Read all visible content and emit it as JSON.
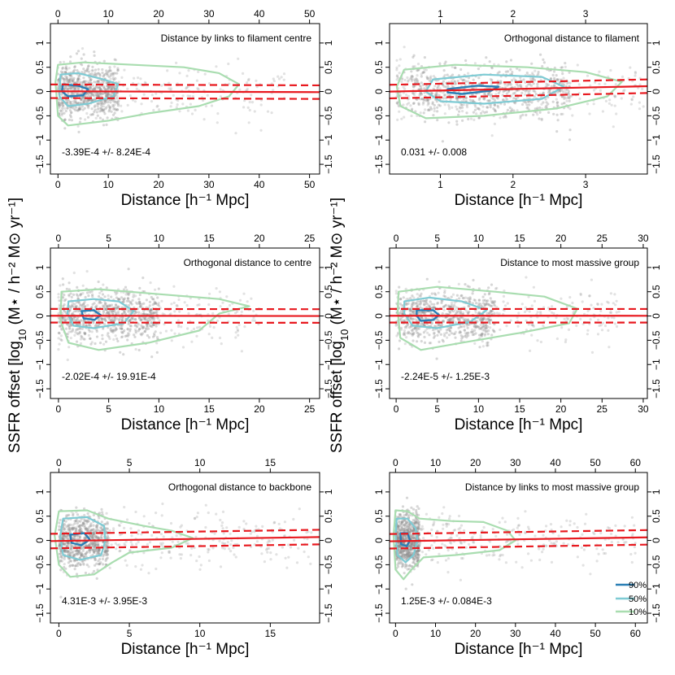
{
  "figure": {
    "y_axis_label_prefix": "SSFR offset [log",
    "y_axis_label_sub": "10",
    "y_axis_label_suffix": " (M⋆ / h⁻² M⊙ yr⁻¹]",
    "colors": {
      "contour_90": "#2a7fb5",
      "contour_50": "#7ecbd4",
      "contour_10": "#a9ddb0",
      "fit": "#e8191f",
      "points": "#8c8c8c"
    }
  },
  "legend": {
    "entries": [
      {
        "label": "90%",
        "color": "#2a7fb5"
      },
      {
        "label": "50%",
        "color": "#7ecbd4"
      },
      {
        "label": "10%",
        "color": "#a9ddb0"
      }
    ],
    "position": "bottom-right of last panel"
  },
  "chart_data": [
    {
      "type": "scatter",
      "title": "Distance by links to filament centre",
      "xlabel": "Distance [h⁻¹ Mpc]",
      "annotation": "-3.39E-4 +/- 8.24E-4",
      "xlim": [
        -1.5,
        52
      ],
      "ylim": [
        -1.7,
        1.4
      ],
      "xticks": [
        0,
        10,
        20,
        30,
        40,
        50
      ],
      "yticks": [
        -1.5,
        -1,
        -0.5,
        0,
        0.5,
        1
      ],
      "ytick_labels": [
        "−1.5",
        "−1",
        "−0.5",
        "0",
        "0.5",
        "1"
      ],
      "fit": {
        "intercept": 0.005,
        "slope": -0.000339,
        "band": 0.14
      },
      "scatter_extent": {
        "core_x": [
          0,
          12
        ],
        "tail_x": [
          0,
          45
        ]
      },
      "contours": [
        {
          "level": "10%",
          "points": [
            [
              0,
              0.55
            ],
            [
              5,
              0.6
            ],
            [
              15,
              0.55
            ],
            [
              25,
              0.5
            ],
            [
              32,
              0.38
            ],
            [
              36,
              0.15
            ],
            [
              34,
              -0.1
            ],
            [
              28,
              -0.3
            ],
            [
              18,
              -0.45
            ],
            [
              10,
              -0.6
            ],
            [
              2,
              -0.7
            ],
            [
              0,
              -0.5
            ],
            [
              -0.5,
              0.2
            ]
          ]
        },
        {
          "level": "50%",
          "points": [
            [
              0.5,
              0.35
            ],
            [
              4,
              0.38
            ],
            [
              9,
              0.25
            ],
            [
              12,
              0.15
            ],
            [
              11,
              -0.1
            ],
            [
              6,
              -0.25
            ],
            [
              2,
              -0.3
            ],
            [
              0.3,
              -0.1
            ]
          ]
        },
        {
          "level": "90%",
          "points": [
            [
              1,
              0.15
            ],
            [
              4,
              0.12
            ],
            [
              6,
              0.05
            ],
            [
              5,
              -0.08
            ],
            [
              2,
              -0.1
            ],
            [
              0.8,
              0
            ]
          ]
        }
      ]
    },
    {
      "type": "scatter",
      "title": "Orthogonal distance to filament",
      "xlabel": "Distance [h⁻¹ Mpc]",
      "annotation": "0.031 +/- 0.008",
      "xlim": [
        0.3,
        3.85
      ],
      "ylim": [
        -1.7,
        1.4
      ],
      "xticks": [
        1,
        2,
        3
      ],
      "yticks": [
        -1.5,
        -1,
        -0.5,
        0,
        0.5,
        1
      ],
      "ytick_labels": [
        "−1.5",
        "−1",
        "−0.5",
        "0",
        "0.5",
        "1"
      ],
      "fit": {
        "intercept": -0.01,
        "slope": 0.031,
        "band": 0.14
      },
      "scatter_extent": {
        "core_x": [
          0.6,
          2.8
        ],
        "tail_x": [
          0.4,
          3.8
        ]
      },
      "contours": [
        {
          "level": "10%",
          "points": [
            [
              0.5,
              0.45
            ],
            [
              1.2,
              0.55
            ],
            [
              2.2,
              0.5
            ],
            [
              3.0,
              0.4
            ],
            [
              3.5,
              0.2
            ],
            [
              3.3,
              -0.1
            ],
            [
              2.6,
              -0.35
            ],
            [
              1.6,
              -0.5
            ],
            [
              0.8,
              -0.55
            ],
            [
              0.45,
              -0.3
            ],
            [
              0.4,
              0.1
            ]
          ]
        },
        {
          "level": "50%",
          "points": [
            [
              0.9,
              0.25
            ],
            [
              1.6,
              0.35
            ],
            [
              2.4,
              0.3
            ],
            [
              2.7,
              0.1
            ],
            [
              2.4,
              -0.15
            ],
            [
              1.6,
              -0.25
            ],
            [
              1.0,
              -0.2
            ],
            [
              0.8,
              0
            ]
          ]
        },
        {
          "level": "90%",
          "points": [
            [
              1.1,
              0.05
            ],
            [
              1.5,
              0.12
            ],
            [
              1.8,
              0.1
            ],
            [
              1.7,
              0.02
            ],
            [
              1.3,
              -0.05
            ],
            [
              1.1,
              -0.02
            ]
          ]
        }
      ]
    },
    {
      "type": "scatter",
      "title": "Orthogonal distance to centre",
      "xlabel": "Distance [h⁻¹ Mpc]",
      "annotation": "-2.02E-4 +/- 19.91E-4",
      "xlim": [
        -0.8,
        26
      ],
      "ylim": [
        -1.7,
        1.4
      ],
      "xticks": [
        0,
        5,
        10,
        15,
        20,
        25
      ],
      "yticks": [
        -1.5,
        -1,
        -0.5,
        0,
        0.5,
        1
      ],
      "ytick_labels": [
        "−1.5",
        "−1",
        "−0.5",
        "0",
        "0.5",
        "1"
      ],
      "fit": {
        "intercept": 0.005,
        "slope": -0.000202,
        "band": 0.14
      },
      "scatter_extent": {
        "core_x": [
          0.3,
          10
        ],
        "tail_x": [
          0,
          20
        ]
      },
      "contours": [
        {
          "level": "10%",
          "points": [
            [
              0.3,
              0.5
            ],
            [
              4,
              0.55
            ],
            [
              10,
              0.45
            ],
            [
              16,
              0.35
            ],
            [
              19,
              0.2
            ],
            [
              16,
              0.05
            ],
            [
              14,
              -0.3
            ],
            [
              9,
              -0.55
            ],
            [
              4,
              -0.7
            ],
            [
              1,
              -0.55
            ],
            [
              0.2,
              -0.1
            ]
          ]
        },
        {
          "level": "50%",
          "points": [
            [
              1,
              0.3
            ],
            [
              3.5,
              0.35
            ],
            [
              6,
              0.3
            ],
            [
              7.5,
              0.1
            ],
            [
              6.5,
              -0.15
            ],
            [
              3.5,
              -0.25
            ],
            [
              1.5,
              -0.2
            ],
            [
              0.9,
              0.05
            ]
          ]
        },
        {
          "level": "90%",
          "points": [
            [
              2.3,
              0.1
            ],
            [
              3.5,
              0.12
            ],
            [
              4.2,
              0.02
            ],
            [
              3.6,
              -0.08
            ],
            [
              2.5,
              -0.05
            ]
          ]
        }
      ]
    },
    {
      "type": "scatter",
      "title": "Distance to most massive group",
      "xlabel": "Distance [h⁻¹ Mpc]",
      "annotation": "-2.24E-5 +/- 1.25E-3",
      "xlim": [
        -0.8,
        30.5
      ],
      "ylim": [
        -1.7,
        1.4
      ],
      "xticks": [
        0,
        5,
        10,
        15,
        20,
        25,
        30
      ],
      "yticks": [
        -1.5,
        -1,
        -0.5,
        0,
        0.5,
        1
      ],
      "ytick_labels": [
        "−1.5",
        "−1",
        "−0.5",
        "0",
        "0.5",
        "1"
      ],
      "fit": {
        "intercept": 0.005,
        "slope": -2.24e-05,
        "band": 0.14
      },
      "scatter_extent": {
        "core_x": [
          0.3,
          12
        ],
        "tail_x": [
          0,
          28
        ]
      },
      "contours": [
        {
          "level": "10%",
          "points": [
            [
              0.3,
              0.5
            ],
            [
              5,
              0.6
            ],
            [
              12,
              0.5
            ],
            [
              18,
              0.4
            ],
            [
              22,
              0.15
            ],
            [
              21,
              -0.15
            ],
            [
              15,
              -0.35
            ],
            [
              8,
              -0.55
            ],
            [
              3,
              -0.7
            ],
            [
              0.5,
              -0.45
            ],
            [
              0.2,
              0.1
            ]
          ]
        },
        {
          "level": "50%",
          "points": [
            [
              1,
              0.3
            ],
            [
              4,
              0.38
            ],
            [
              8,
              0.3
            ],
            [
              11,
              0.12
            ],
            [
              9,
              -0.12
            ],
            [
              5,
              -0.25
            ],
            [
              2,
              -0.2
            ],
            [
              1,
              0.05
            ]
          ]
        },
        {
          "level": "90%",
          "points": [
            [
              2.5,
              0.12
            ],
            [
              4.5,
              0.12
            ],
            [
              5.2,
              0.02
            ],
            [
              4.5,
              -0.08
            ],
            [
              3,
              -0.1
            ],
            [
              2.5,
              0
            ]
          ]
        }
      ]
    },
    {
      "type": "scatter",
      "title": "Orthogonal distance to backbone",
      "xlabel": "Distance [h⁻¹ Mpc]",
      "annotation": "4.31E-3 +/- 3.95E-3",
      "xlim": [
        -0.6,
        18.5
      ],
      "ylim": [
        -1.7,
        1.4
      ],
      "xticks": [
        0,
        5,
        10,
        15
      ],
      "yticks": [
        -1.5,
        -1,
        -0.5,
        0,
        0.5,
        1
      ],
      "ytick_labels": [
        "−1.5",
        "−1",
        "−0.5",
        "0",
        "0.5",
        "1"
      ],
      "fit": {
        "intercept": -0.01,
        "slope": 0.00431,
        "band": 0.15
      },
      "scatter_extent": {
        "core_x": [
          0,
          3.5
        ],
        "tail_x": [
          0,
          18
        ]
      },
      "contours": [
        {
          "level": "10%",
          "points": [
            [
              0,
              0.6
            ],
            [
              2,
              0.62
            ],
            [
              3.5,
              0.45
            ],
            [
              6,
              0.3
            ],
            [
              8,
              0.2
            ],
            [
              9.5,
              0.05
            ],
            [
              8,
              -0.15
            ],
            [
              5,
              -0.25
            ],
            [
              3.8,
              -0.45
            ],
            [
              2.5,
              -0.7
            ],
            [
              0.8,
              -0.75
            ],
            [
              0,
              -0.5
            ],
            [
              -0.3,
              0.1
            ]
          ]
        },
        {
          "level": "50%",
          "points": [
            [
              0.3,
              0.45
            ],
            [
              2,
              0.48
            ],
            [
              3.2,
              0.3
            ],
            [
              3.3,
              0
            ],
            [
              3,
              -0.3
            ],
            [
              1.5,
              -0.4
            ],
            [
              0.3,
              -0.3
            ],
            [
              0.1,
              0.1
            ]
          ]
        },
        {
          "level": "90%",
          "points": [
            [
              0.8,
              0.12
            ],
            [
              1.8,
              0.15
            ],
            [
              2.2,
              0.02
            ],
            [
              1.6,
              -0.1
            ],
            [
              0.9,
              -0.05
            ]
          ]
        }
      ]
    },
    {
      "type": "scatter",
      "title": "Distance by links to most massive group",
      "xlabel": "Distance [h⁻¹ Mpc]",
      "annotation": "1.25E-3 +/- 0.084E-3",
      "xlim": [
        -1.5,
        63
      ],
      "ylim": [
        -1.7,
        1.4
      ],
      "xticks": [
        0,
        10,
        20,
        30,
        40,
        50,
        60
      ],
      "yticks": [
        -1.5,
        -1,
        -0.5,
        0,
        0.5,
        1
      ],
      "ytick_labels": [
        "−1.5",
        "−1",
        "−0.5",
        "0",
        "0.5",
        "1"
      ],
      "fit": {
        "intercept": -0.015,
        "slope": 0.00125,
        "band": 0.15
      },
      "scatter_extent": {
        "core_x": [
          0,
          6
        ],
        "tail_x": [
          0,
          60
        ]
      },
      "contours": [
        {
          "level": "10%",
          "points": [
            [
              0,
              0.62
            ],
            [
              3,
              0.6
            ],
            [
              6,
              0.45
            ],
            [
              14,
              0.4
            ],
            [
              22,
              0.38
            ],
            [
              28,
              0.2
            ],
            [
              30,
              0
            ],
            [
              26,
              -0.2
            ],
            [
              15,
              -0.3
            ],
            [
              7,
              -0.35
            ],
            [
              4,
              -0.6
            ],
            [
              2,
              -0.8
            ],
            [
              0,
              -0.6
            ],
            [
              -0.5,
              0.1
            ]
          ]
        },
        {
          "level": "50%",
          "points": [
            [
              0.3,
              0.45
            ],
            [
              3,
              0.45
            ],
            [
              5,
              0.25
            ],
            [
              5.5,
              0
            ],
            [
              4.5,
              -0.3
            ],
            [
              2.5,
              -0.45
            ],
            [
              0.5,
              -0.3
            ],
            [
              0,
              0.1
            ]
          ]
        },
        {
          "level": "90%",
          "points": [
            [
              1.2,
              0.15
            ],
            [
              3,
              0.15
            ],
            [
              3.6,
              0
            ],
            [
              2.8,
              -0.12
            ],
            [
              1.4,
              -0.08
            ]
          ]
        }
      ]
    }
  ]
}
